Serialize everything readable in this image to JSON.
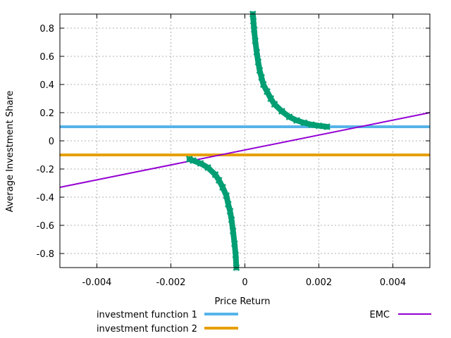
{
  "chart_data": {
    "type": "line",
    "title": "",
    "xlabel": "Price Return",
    "ylabel": "Average Investment Share",
    "xlim": [
      -0.005,
      0.005
    ],
    "ylim": [
      -0.9,
      0.9
    ],
    "grid": true,
    "legend_position": "below",
    "x_ticks": [
      {
        "value": -0.004,
        "label": "-0.004"
      },
      {
        "value": -0.002,
        "label": "-0.002"
      },
      {
        "value": 0,
        "label": "0"
      },
      {
        "value": 0.002,
        "label": "0.002"
      },
      {
        "value": 0.004,
        "label": "0.004"
      }
    ],
    "y_ticks": [
      {
        "value": 0.8,
        "label": "0.8"
      },
      {
        "value": 0.6,
        "label": "0.6"
      },
      {
        "value": 0.4,
        "label": "0.4"
      },
      {
        "value": 0.2,
        "label": "0.2"
      },
      {
        "value": 0,
        "label": "0"
      },
      {
        "value": -0.2,
        "label": "-0.2"
      },
      {
        "value": -0.4,
        "label": "-0.4"
      },
      {
        "value": -0.6,
        "label": "-0.6"
      },
      {
        "value": -0.8,
        "label": "-0.8"
      }
    ],
    "series": [
      {
        "name": "investment function 1",
        "color": "#56b4e9",
        "style": "line",
        "x": [
          -0.005,
          0.005
        ],
        "y": [
          0.1,
          0.1
        ]
      },
      {
        "name": "investment function 2",
        "color": "#e69f00",
        "style": "line",
        "x": [
          -0.005,
          0.005
        ],
        "y": [
          -0.1,
          -0.1
        ]
      },
      {
        "name": "EMC",
        "color": "#9400d3",
        "style": "line",
        "x": [
          -0.005,
          0.005
        ],
        "y": [
          -0.33,
          0.2
        ]
      },
      {
        "name": "",
        "color": "#009e73",
        "style": "markers",
        "x": [
          0.000215,
          0.00023,
          0.00025,
          0.00028,
          0.00032,
          0.00036,
          0.0004,
          0.00045,
          0.0005,
          0.0006,
          0.0007,
          0.0008,
          0.001,
          0.0012,
          0.0014,
          0.0016,
          0.0018,
          0.002,
          0.00222
        ],
        "y": [
          0.9,
          0.85,
          0.79,
          0.71,
          0.63,
          0.56,
          0.5,
          0.45,
          0.4,
          0.35,
          0.3,
          0.26,
          0.21,
          0.17,
          0.145,
          0.128,
          0.115,
          0.107,
          0.1
        ]
      },
      {
        "name": "",
        "color": "#009e73",
        "style": "markers",
        "x": [
          -0.0015,
          -0.0014,
          -0.0012,
          -0.001,
          -0.0008,
          -0.0007,
          -0.0006,
          -0.0005,
          -0.00045,
          -0.0004,
          -0.00036,
          -0.00032,
          -0.00028,
          -0.00025,
          -0.00023
        ],
        "y": [
          -0.13,
          -0.14,
          -0.16,
          -0.19,
          -0.24,
          -0.28,
          -0.33,
          -0.39,
          -0.45,
          -0.5,
          -0.56,
          -0.64,
          -0.73,
          -0.81,
          -0.9
        ]
      }
    ]
  }
}
